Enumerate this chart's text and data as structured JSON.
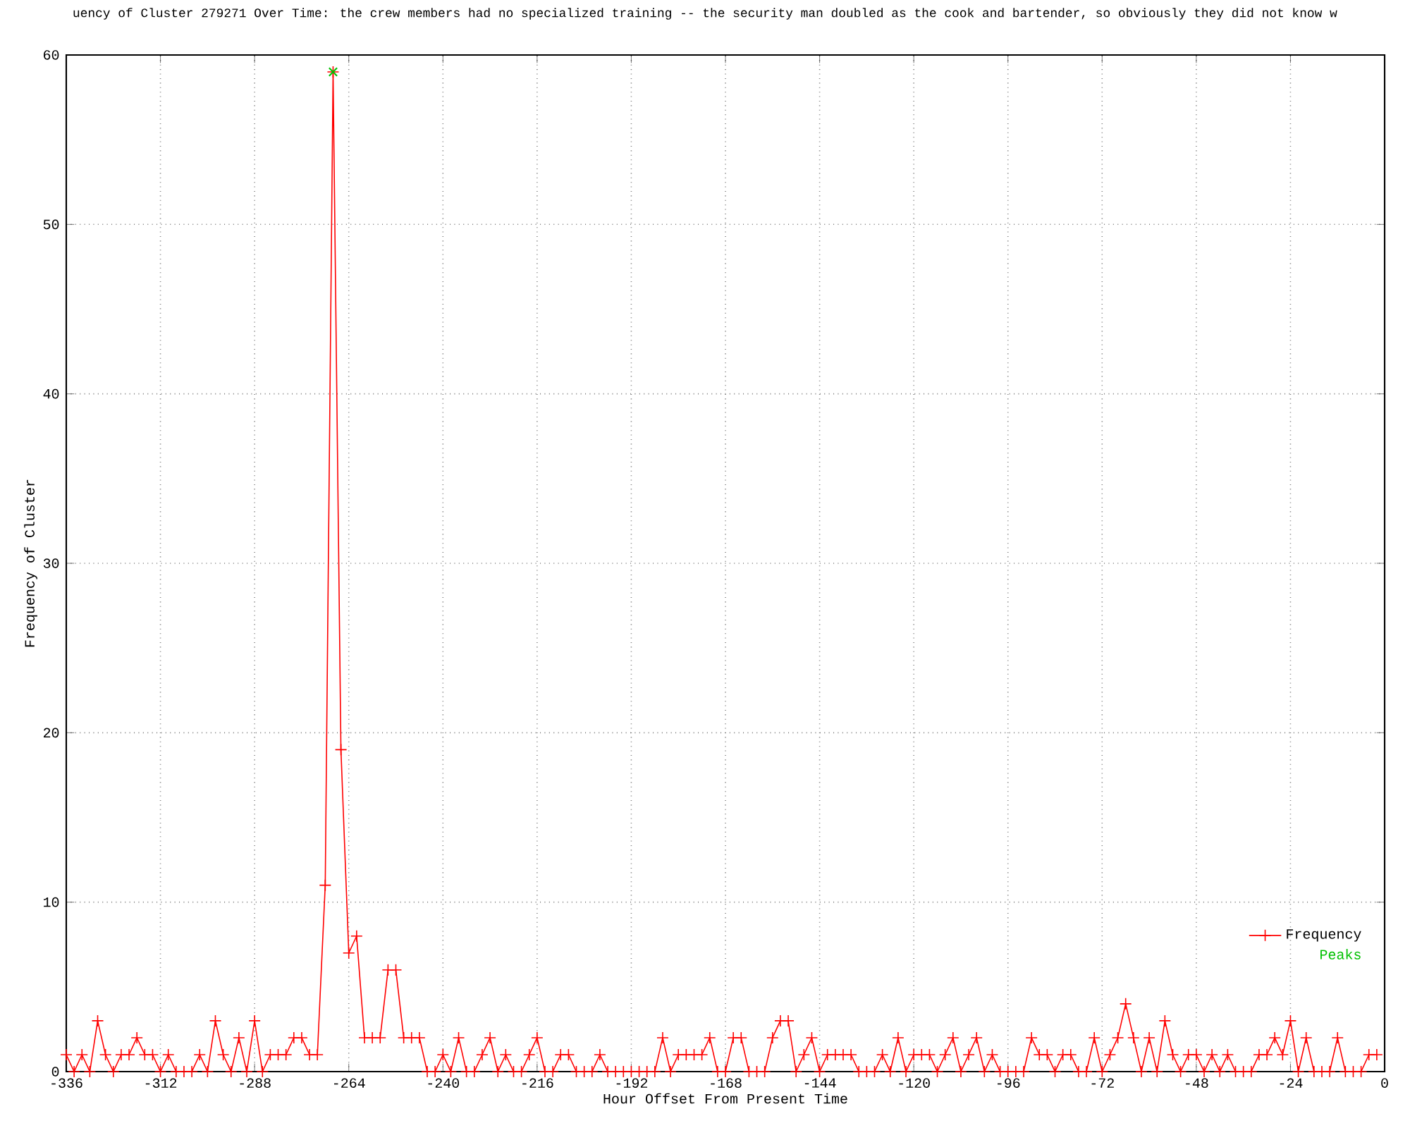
{
  "chart_data": {
    "type": "line",
    "title": "uency of Cluster 279271 Over Time: the crew members had no specialized training -- the security man doubled as the cook and bartender, so obviously they did not know w",
    "xlabel": "Hour Offset From Present Time",
    "ylabel": "Frequency of Cluster",
    "xlim": [
      -336,
      0
    ],
    "ylim": [
      0,
      60
    ],
    "xticks": [
      -336,
      -312,
      -288,
      -264,
      -240,
      -216,
      -192,
      -168,
      -144,
      -120,
      -96,
      -72,
      -48,
      -24,
      0
    ],
    "yticks": [
      0,
      10,
      20,
      30,
      40,
      50,
      60
    ],
    "grid": true,
    "legend": "bottom right",
    "series": [
      {
        "name": "Frequency",
        "color": "#ff0000",
        "marker": "cross",
        "x": [
          -336,
          -334,
          -332,
          -330,
          -328,
          -326,
          -324,
          -322,
          -320,
          -318,
          -316,
          -314,
          -312,
          -310,
          -308,
          -306,
          -304,
          -302,
          -300,
          -298,
          -296,
          -294,
          -292,
          -290,
          -288,
          -286,
          -284,
          -282,
          -280,
          -278,
          -276,
          -274,
          -272,
          -270,
          -268,
          -266,
          -264,
          -262,
          -260,
          -258,
          -256,
          -254,
          -252,
          -250,
          -248,
          -246,
          -244,
          -242,
          -240,
          -238,
          -236,
          -234,
          -232,
          -230,
          -228,
          -226,
          -224,
          -222,
          -220,
          -218,
          -216,
          -214,
          -212,
          -210,
          -208,
          -206,
          -204,
          -202,
          -200,
          -198,
          -196,
          -194,
          -192,
          -190,
          -188,
          -186,
          -184,
          -182,
          -180,
          -178,
          -176,
          -174,
          -172,
          -170,
          -168,
          -166,
          -164,
          -162,
          -160,
          -158,
          -156,
          -154,
          -152,
          -150,
          -148,
          -146,
          -144,
          -142,
          -140,
          -138,
          -136,
          -134,
          -132,
          -130,
          -128,
          -126,
          -124,
          -122,
          -120,
          -118,
          -116,
          -114,
          -112,
          -110,
          -108,
          -106,
          -104,
          -102,
          -100,
          -98,
          -96,
          -94,
          -92,
          -90,
          -88,
          -86,
          -84,
          -82,
          -80,
          -78,
          -76,
          -74,
          -72,
          -70,
          -68,
          -66,
          -64,
          -62,
          -60,
          -58,
          -56,
          -54,
          -52,
          -50,
          -48,
          -46,
          -44,
          -42,
          -40,
          -38,
          -36,
          -34,
          -32,
          -30,
          -28,
          -26,
          -24,
          -22,
          -20,
          -18,
          -16,
          -14,
          -12,
          -10,
          -8,
          -6,
          -4,
          -2
        ],
        "values": [
          1,
          0,
          1,
          0,
          3,
          1,
          0,
          1,
          1,
          2,
          1,
          1,
          0,
          1,
          0,
          0,
          0,
          1,
          0,
          3,
          1,
          0,
          2,
          0,
          3,
          0,
          1,
          1,
          1,
          2,
          2,
          1,
          1,
          11,
          59,
          19,
          7,
          8,
          2,
          2,
          2,
          6,
          6,
          2,
          2,
          2,
          0,
          0,
          1,
          0,
          2,
          0,
          0,
          1,
          2,
          0,
          1,
          0,
          0,
          1,
          2,
          0,
          0,
          1,
          1,
          0,
          0,
          0,
          1,
          0,
          0,
          0,
          0,
          0,
          0,
          0,
          2,
          0,
          1,
          1,
          1,
          1,
          2,
          0,
          0,
          2,
          2,
          0,
          0,
          0,
          2,
          3,
          3,
          0,
          1,
          2,
          0,
          1,
          1,
          1,
          1,
          0,
          0,
          0,
          1,
          0,
          2,
          0,
          1,
          1,
          1,
          0,
          1,
          2,
          0,
          1,
          2,
          0,
          1,
          0,
          0,
          0,
          0,
          2,
          1,
          1,
          0,
          1,
          1,
          0,
          0,
          2,
          0,
          1,
          2,
          4,
          2,
          0,
          2,
          0,
          3,
          1,
          0,
          1,
          1,
          0,
          1,
          0,
          1,
          0,
          0,
          0,
          1,
          1,
          2,
          1,
          3,
          0,
          2,
          0,
          0,
          0,
          2,
          0,
          0,
          0,
          1,
          1
        ]
      },
      {
        "name": "Peaks",
        "color": "#00c000",
        "type": "scatter",
        "marker": "cross",
        "x": [
          -268
        ],
        "values": [
          59
        ]
      }
    ]
  }
}
